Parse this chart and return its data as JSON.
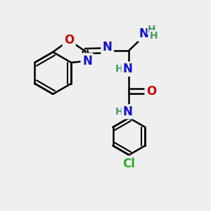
{
  "background_color": "#efefef",
  "bond_color": "#000000",
  "bond_width": 1.8,
  "atom_colors": {
    "C": "#000000",
    "N": "#1010cc",
    "O": "#cc0000",
    "H": "#4a9a6a",
    "Cl": "#2aaa2a"
  },
  "xlim": [
    0.0,
    5.5
  ],
  "ylim": [
    -3.5,
    3.2
  ],
  "figsize": [
    3.0,
    3.0
  ],
  "dpi": 100
}
